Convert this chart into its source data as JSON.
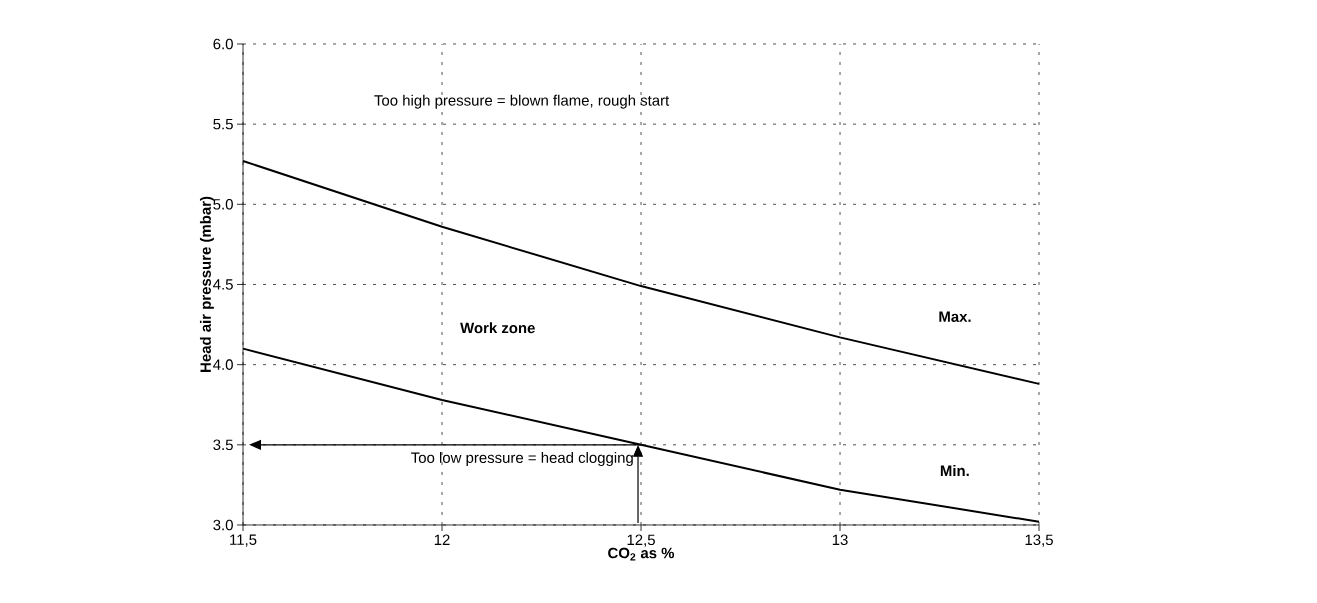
{
  "chart_data": {
    "type": "line",
    "xlabel": "**CO$_{2}$ as %**",
    "ylabel": "**Head air pressure (mbar)**",
    "x": [
      11.5,
      12,
      12.5,
      13,
      13.5
    ],
    "series": [
      {
        "name": "Max.",
        "color": "#000000",
        "values": [
          5.27,
          4.86,
          4.49,
          4.17,
          3.88
        ]
      },
      {
        "name": "Min.",
        "color": "#000000",
        "values": [
          4.1,
          3.78,
          3.5,
          3.22,
          3.02
        ]
      }
    ],
    "xlim": [
      11.5,
      13.5
    ],
    "ylim": [
      3.0,
      6.0
    ],
    "xticks": [
      {
        "value": 11.5,
        "label": "11,5"
      },
      12,
      {
        "value": 12.5,
        "label": "12,5"
      },
      13,
      {
        "value": 13.5,
        "label": "13,5"
      }
    ],
    "yticks": [
      {
        "value": 3,
        "label": "3.0"
      },
      {
        "value": 3.5,
        "label": "3.5"
      },
      {
        "value": 4,
        "label": "4.0"
      },
      {
        "value": 4.5,
        "label": "4.5"
      },
      {
        "value": 5,
        "label": "5.0"
      },
      {
        "value": 5.5,
        "label": "5.5"
      },
      {
        "value": 6,
        "label": "6.0"
      }
    ],
    "annotations": [
      "Too high pressure = blown flame, rough start",
      "**Work zone**",
      {
        "text": "Too low pressure = head clogging",
        "x": 12.5,
        "y": 3.5
      }
    ],
    "grid": true,
    "marker": "none",
    "line_style": "solid"
  }
}
